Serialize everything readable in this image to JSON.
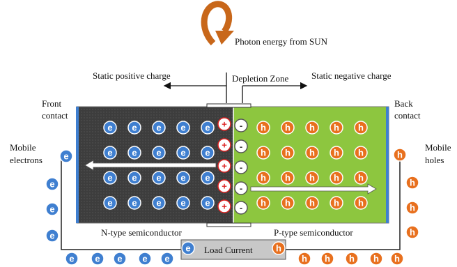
{
  "title": "Photon energy from SUN",
  "labels": {
    "static_positive": "Static positive charge",
    "depletion_zone": "Depletion Zone",
    "static_negative": "Static negative charge",
    "front_contact": [
      "Front",
      "contact"
    ],
    "back_contact": [
      "Back",
      "contact"
    ],
    "mobile_electrons": [
      "Mobile",
      "electrons"
    ],
    "mobile_holes": [
      "Mobile",
      "holes"
    ],
    "n_type": "N-type semiconductor",
    "p_type": "P-type semiconductor",
    "load": "Load Current"
  },
  "symbols": {
    "electron": "e",
    "hole": "h",
    "positive": "+",
    "negative": "-"
  }
}
